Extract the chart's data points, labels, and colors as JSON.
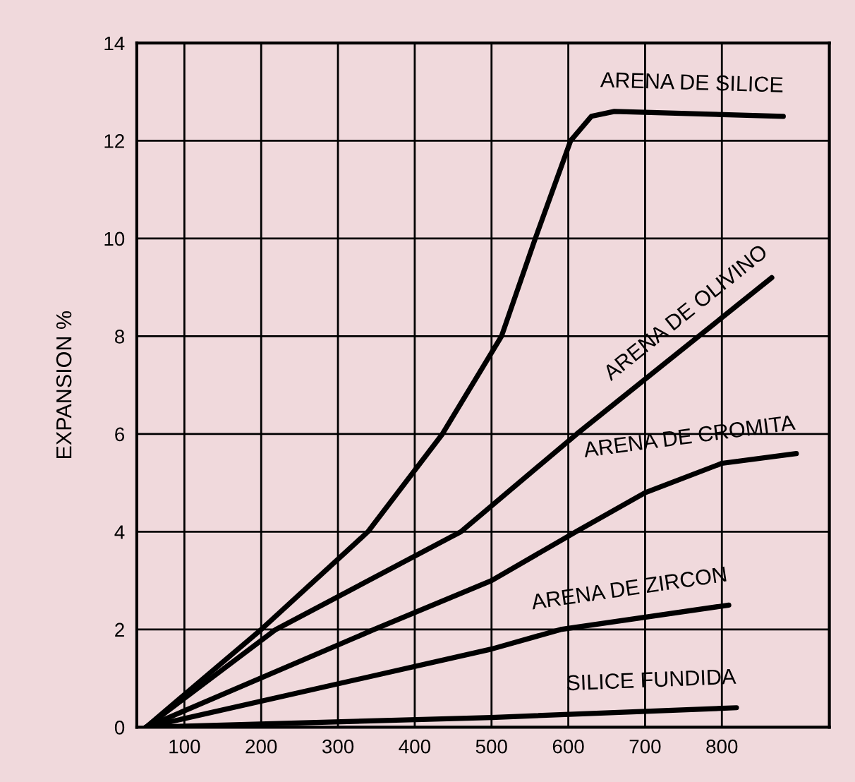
{
  "chart_data": {
    "type": "line",
    "ylabel": "EXPANSION %",
    "xlim": [
      38,
      940
    ],
    "ylim": [
      0,
      14
    ],
    "xticks": [
      100,
      200,
      300,
      400,
      500,
      600,
      700,
      800
    ],
    "yticks": [
      0,
      2,
      4,
      6,
      8,
      10,
      12,
      14
    ],
    "grid": true,
    "legend": false,
    "marker": "none",
    "line_style": "solid",
    "series": [
      {
        "name": "ARENA DE SILICE",
        "color": "#000000",
        "x": [
          50,
          200,
          339,
          436,
          513,
          557,
          603,
          630,
          660,
          880
        ],
        "values": [
          0,
          2,
          4,
          6,
          8,
          10,
          12,
          12.5,
          12.6,
          12.5
        ]
      },
      {
        "name": "ARENA DE OLIVINO",
        "color": "#000000",
        "x": [
          50,
          219,
          460,
          611,
          865
        ],
        "values": [
          0,
          2,
          4,
          6,
          9.2
        ]
      },
      {
        "name": "ARENA DE CROMITA",
        "color": "#000000",
        "x": [
          50,
          347,
          500,
          610,
          700,
          800,
          897
        ],
        "values": [
          0,
          2,
          3.0,
          4,
          4.8,
          5.4,
          5.6
        ]
      },
      {
        "name": "ARENA DE ZIRCON",
        "color": "#000000",
        "x": [
          50,
          500,
          590,
          809
        ],
        "values": [
          0,
          1.6,
          2,
          2.5
        ]
      },
      {
        "name": "SILICE FUNDIDA",
        "color": "#000000",
        "x": [
          50,
          500,
          819
        ],
        "values": [
          0,
          0.2,
          0.4
        ]
      }
    ]
  }
}
